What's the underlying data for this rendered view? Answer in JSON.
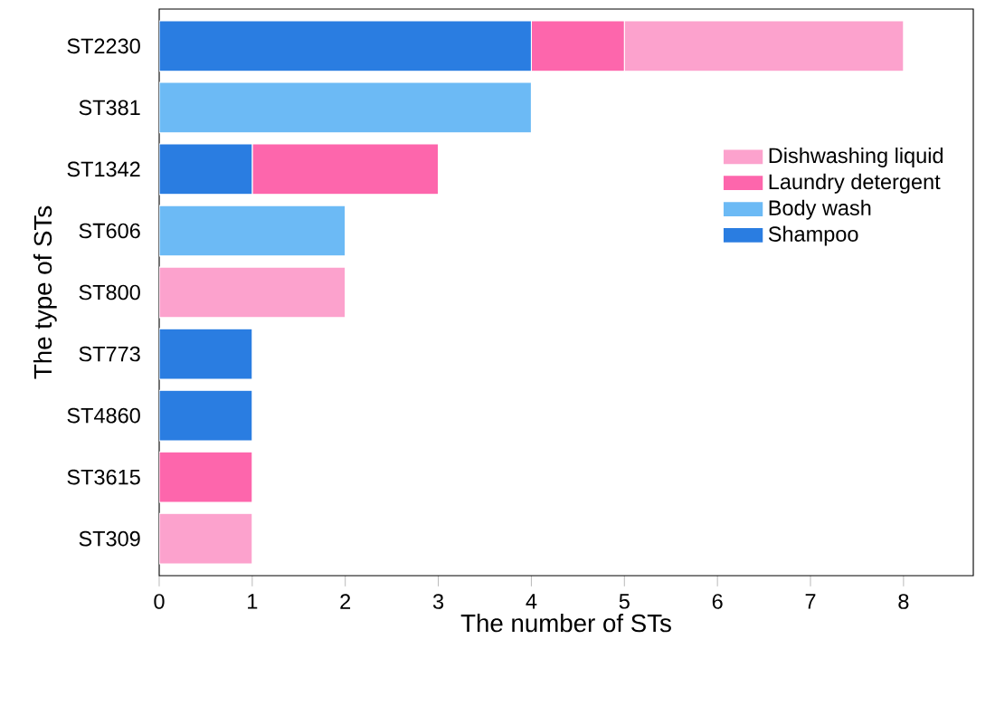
{
  "chart_data": {
    "type": "bar",
    "orientation": "horizontal",
    "stacked": true,
    "xlabel": "The number of STs",
    "ylabel": "The type of STs",
    "categories": [
      "ST2230",
      "ST381",
      "ST1342",
      "ST606",
      "ST800",
      "ST773",
      "ST4860",
      "ST3615",
      "ST309"
    ],
    "series": [
      {
        "name": "Shampoo",
        "color": "#2a7de1",
        "values": [
          4,
          0,
          1,
          0,
          0,
          1,
          1,
          0,
          0
        ]
      },
      {
        "name": "Body wash",
        "color": "#6cbaf5",
        "values": [
          0,
          4,
          0,
          2,
          0,
          0,
          0,
          0,
          0
        ]
      },
      {
        "name": "Laundry detergent",
        "color": "#fd66ac",
        "values": [
          1,
          0,
          2,
          0,
          0,
          0,
          0,
          1,
          0
        ]
      },
      {
        "name": "Dishwashing liquid",
        "color": "#fca2cd",
        "values": [
          3,
          0,
          0,
          0,
          2,
          0,
          0,
          0,
          1
        ]
      }
    ],
    "xlim": [
      0,
      8.75
    ],
    "xticks": [
      0,
      1,
      2,
      3,
      4,
      5,
      6,
      7,
      8
    ],
    "legend": "right",
    "grid": false
  }
}
